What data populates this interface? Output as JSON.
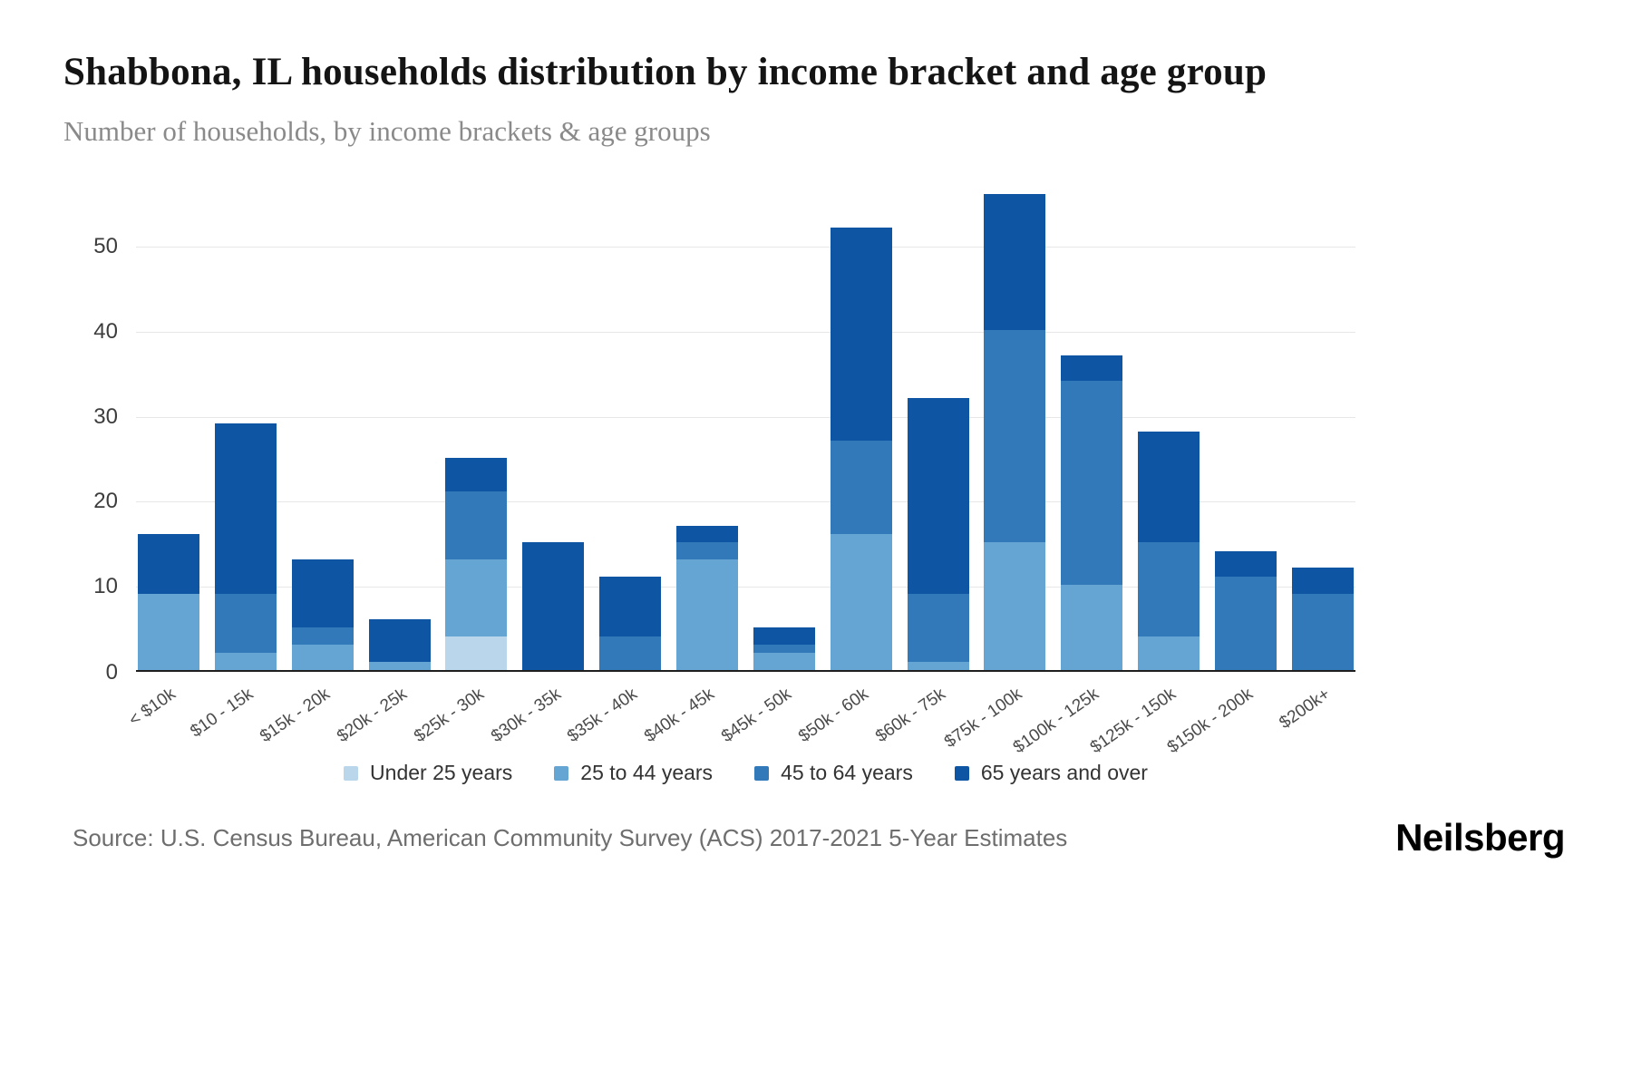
{
  "header": {
    "title": "Shabbona, IL households distribution by income bracket and age group",
    "subtitle": "Number of households, by income brackets & age groups"
  },
  "footer": {
    "source": "Source: U.S. Census Bureau, American Community Survey (ACS) 2017-2021 5-Year Estimates",
    "brand": "Neilsberg"
  },
  "chart_data": {
    "type": "bar",
    "stacked": true,
    "title": "Shabbona, IL households distribution by income bracket and age group",
    "subtitle": "Number of households, by income brackets & age groups",
    "xlabel": "",
    "ylabel": "",
    "grid": true,
    "legend_position": "bottom",
    "yticks": [
      0,
      10,
      20,
      30,
      40,
      50
    ],
    "ylim": [
      0,
      56.5
    ],
    "categories": [
      "< $10k",
      "$10 - 15k",
      "$15k - 20k",
      "$20k - 25k",
      "$25k - 30k",
      "$30k - 35k",
      "$35k - 40k",
      "$40k - 45k",
      "$45k - 50k",
      "$50k - 60k",
      "$60k - 75k",
      "$75k - 100k",
      "$100k - 125k",
      "$125k - 150k",
      "$150k - 200k",
      "$200k+"
    ],
    "series": [
      {
        "name": "Under 25 years",
        "color": "#b9d6ea",
        "values": [
          0,
          0,
          0,
          0,
          4,
          0,
          0,
          0,
          0,
          0,
          0,
          0,
          0,
          0,
          0,
          0
        ]
      },
      {
        "name": "25 to 44 years",
        "color": "#64a5d3",
        "values": [
          9,
          2,
          3,
          1,
          9,
          0,
          0,
          13,
          2,
          16,
          1,
          15,
          10,
          4,
          0,
          0
        ]
      },
      {
        "name": "45 to 64 years",
        "color": "#3179b8",
        "values": [
          0,
          7,
          2,
          0,
          8,
          0,
          4,
          2,
          1,
          11,
          8,
          25,
          24,
          11,
          11,
          9
        ]
      },
      {
        "name": "65 years and over",
        "color": "#0e56a4",
        "values": [
          7,
          20,
          8,
          5,
          4,
          15,
          7,
          2,
          2,
          25,
          23,
          16,
          3,
          13,
          3,
          3
        ]
      }
    ],
    "totals": [
      16,
      29,
      13,
      6,
      25,
      15,
      11,
      17,
      5,
      52,
      32,
      56,
      37,
      28,
      14,
      12
    ]
  }
}
